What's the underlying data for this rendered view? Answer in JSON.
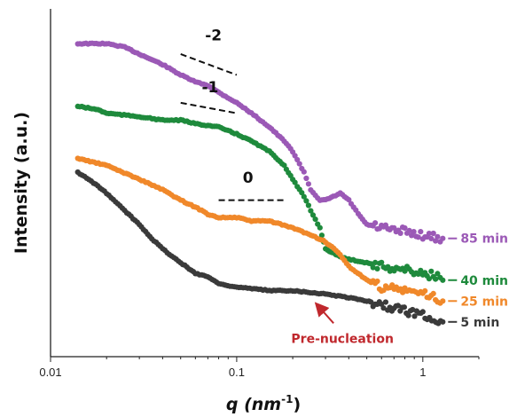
{
  "chart_data": {
    "type": "scatter",
    "title": "",
    "xlabel": "q (nm",
    "xlabel_sup": "-1",
    "xlabel_close": ")",
    "ylabel": "Intensity (a.u.)",
    "xscale": "log",
    "xlim": [
      0.01,
      2
    ],
    "ylim": [
      0,
      100
    ],
    "yticks": "hidden",
    "xticks": [
      {
        "value": 0.01,
        "label": "0.01"
      },
      {
        "value": 0.1,
        "label": "0.1"
      },
      {
        "value": 1,
        "label": "1"
      }
    ],
    "series": [
      {
        "name": "85 min",
        "color": "#9b59b6",
        "points": [
          [
            0.014,
            90
          ],
          [
            0.02,
            90
          ],
          [
            0.025,
            89
          ],
          [
            0.03,
            87
          ],
          [
            0.04,
            84
          ],
          [
            0.05,
            81
          ],
          [
            0.06,
            79
          ],
          [
            0.07,
            78
          ],
          [
            0.08,
            76
          ],
          [
            0.1,
            73
          ],
          [
            0.12,
            70
          ],
          [
            0.15,
            66
          ],
          [
            0.18,
            62
          ],
          [
            0.2,
            59
          ],
          [
            0.23,
            53
          ],
          [
            0.25,
            48
          ],
          [
            0.28,
            45
          ],
          [
            0.3,
            45
          ],
          [
            0.33,
            46
          ],
          [
            0.36,
            47
          ],
          [
            0.4,
            45
          ],
          [
            0.45,
            41
          ],
          [
            0.5,
            38
          ],
          [
            0.6,
            37
          ],
          [
            0.7,
            36
          ],
          [
            0.8,
            36
          ],
          [
            1.0,
            35
          ],
          [
            1.2,
            34
          ],
          [
            1.28,
            34
          ]
        ]
      },
      {
        "name": "40 min",
        "color": "#1e8a3c",
        "points": [
          [
            0.014,
            72
          ],
          [
            0.018,
            71
          ],
          [
            0.02,
            70
          ],
          [
            0.03,
            69
          ],
          [
            0.04,
            68
          ],
          [
            0.05,
            68
          ],
          [
            0.06,
            67
          ],
          [
            0.08,
            66
          ],
          [
            0.1,
            64
          ],
          [
            0.12,
            62
          ],
          [
            0.15,
            59
          ],
          [
            0.18,
            55
          ],
          [
            0.2,
            51
          ],
          [
            0.23,
            46
          ],
          [
            0.25,
            42
          ],
          [
            0.28,
            37
          ],
          [
            0.3,
            31
          ],
          [
            0.35,
            29
          ],
          [
            0.4,
            28
          ],
          [
            0.5,
            27
          ],
          [
            0.6,
            26
          ],
          [
            0.8,
            25
          ],
          [
            1.0,
            24
          ],
          [
            1.2,
            23
          ],
          [
            1.28,
            22
          ]
        ]
      },
      {
        "name": "25 min",
        "color": "#f0882a",
        "points": [
          [
            0.014,
            57
          ],
          [
            0.02,
            55
          ],
          [
            0.03,
            51
          ],
          [
            0.04,
            48
          ],
          [
            0.05,
            45
          ],
          [
            0.06,
            43
          ],
          [
            0.07,
            41
          ],
          [
            0.08,
            40
          ],
          [
            0.1,
            40
          ],
          [
            0.12,
            39
          ],
          [
            0.15,
            39
          ],
          [
            0.2,
            37
          ],
          [
            0.25,
            35
          ],
          [
            0.3,
            33
          ],
          [
            0.35,
            30
          ],
          [
            0.4,
            26
          ],
          [
            0.5,
            22
          ],
          [
            0.6,
            20
          ],
          [
            0.8,
            19
          ],
          [
            1.0,
            18
          ],
          [
            1.2,
            17
          ],
          [
            1.28,
            16
          ]
        ]
      },
      {
        "name": "5 min",
        "color": "#3a3a3a",
        "points": [
          [
            0.014,
            53
          ],
          [
            0.017,
            50
          ],
          [
            0.02,
            47
          ],
          [
            0.025,
            42
          ],
          [
            0.03,
            38
          ],
          [
            0.035,
            34
          ],
          [
            0.04,
            31
          ],
          [
            0.05,
            27
          ],
          [
            0.06,
            24
          ],
          [
            0.07,
            23
          ],
          [
            0.08,
            21
          ],
          [
            0.1,
            20
          ],
          [
            0.15,
            19
          ],
          [
            0.2,
            19
          ],
          [
            0.3,
            18
          ],
          [
            0.4,
            17
          ],
          [
            0.5,
            16
          ],
          [
            0.7,
            14
          ],
          [
            1.0,
            12
          ],
          [
            1.28,
            10
          ]
        ]
      }
    ],
    "slope_markers": [
      {
        "label": "-2",
        "x0": 0.05,
        "x1": 0.1,
        "y0": 87,
        "y1": 81,
        "label_x": 0.075,
        "label_y": 91
      },
      {
        "label": "-1",
        "x0": 0.05,
        "x1": 0.1,
        "y0": 73,
        "y1": 70,
        "label_x": 0.072,
        "label_y": 76
      },
      {
        "label": "0",
        "x0": 0.08,
        "x1": 0.18,
        "y0": 45,
        "y1": 45,
        "label_x": 0.115,
        "label_y": 50
      }
    ],
    "annotations": [
      {
        "text": "Pre-nucleation",
        "color": "#c0282d",
        "from_x": 0.37,
        "from_y": 4,
        "to_x": 0.27,
        "to_y": 17
      }
    ]
  }
}
